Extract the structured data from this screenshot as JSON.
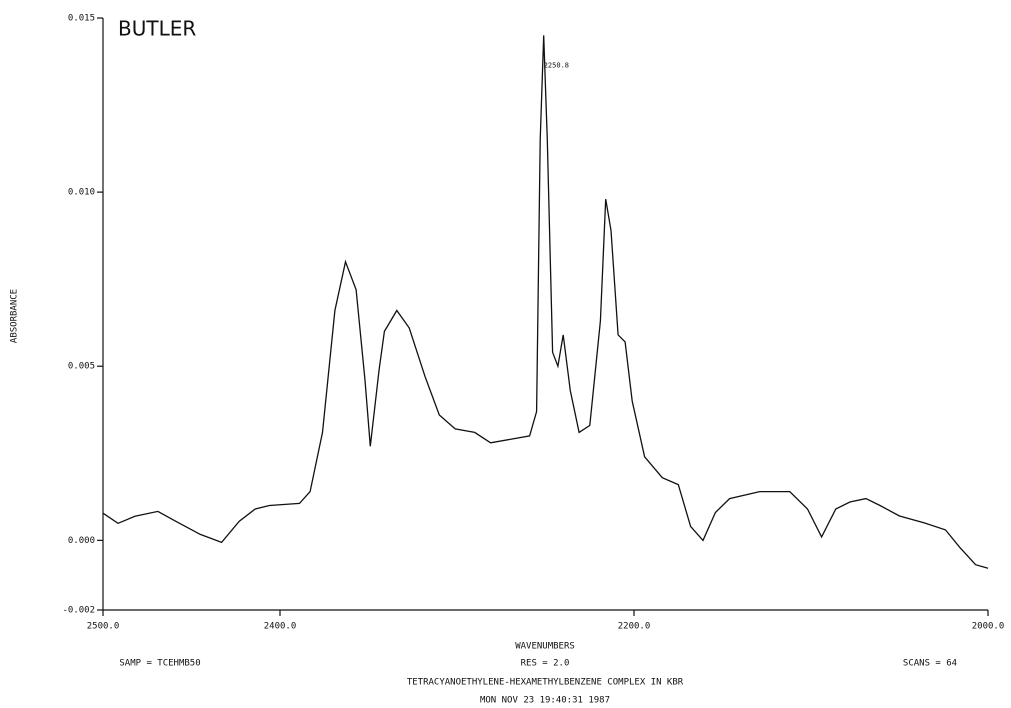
{
  "chart_data": {
    "type": "line",
    "title": "BUTLER",
    "y_label": "ABSORBANCE",
    "x_label": "WAVENUMBERS",
    "footer": {
      "sample": "SAMP = TCEHMB50",
      "resolution": "RES = 2.0",
      "scans": "SCANS = 64",
      "description": "TETRACYANOETHYLENE-HEXAMETHYLBENZENE COMPLEX IN KBR",
      "timestamp": "MON NOV 23 19:40:31 1987"
    },
    "annotation": {
      "label": "2250.8",
      "x": 2251,
      "y": 0.0145
    },
    "xlim": [
      2500,
      2000
    ],
    "xticks": [
      {
        "value": 2500,
        "label": "2500.0"
      },
      {
        "value": 2400,
        "label": "2400.0"
      },
      {
        "value": 2200,
        "label": "2200.0"
      },
      {
        "value": 2000,
        "label": "2000.0"
      }
    ],
    "ylim": [
      -0.002,
      0.015
    ],
    "yticks": [
      -0.002,
      {
        "value": 0,
        "label": "0.000"
      },
      {
        "value": 0.005,
        "label": "0.005"
      },
      {
        "value": 0.01,
        "label": "0.010"
      },
      0.015
    ],
    "color": "#111111",
    "x": [
      2500,
      2491.5,
      2482,
      2469,
      2459,
      2445,
      2433,
      2423,
      2414,
      2406,
      2389,
      2383,
      2376,
      2369,
      2363,
      2357,
      2352,
      2349,
      2344,
      2341,
      2334,
      2327,
      2318,
      2310,
      2301,
      2290,
      2281,
      2270,
      2259,
      2255,
      2253,
      2251,
      2249,
      2246,
      2243,
      2240,
      2236,
      2231,
      2225,
      2219,
      2216,
      2213,
      2209,
      2205,
      2201,
      2194,
      2184,
      2175,
      2168,
      2161,
      2154,
      2146,
      2129,
      2112,
      2102,
      2094,
      2086,
      2078,
      2069,
      2061,
      2050,
      2036,
      2024,
      2016,
      2007,
      2000
    ],
    "values": [
      0.00078,
      0.00049,
      0.00069,
      0.00083,
      0.00055,
      0.00017,
      -6e-05,
      0.00055,
      0.0009,
      0.001,
      0.00106,
      0.0014,
      0.0031,
      0.0066,
      0.008,
      0.0072,
      0.0046,
      0.0027,
      0.0049,
      0.006,
      0.0066,
      0.0061,
      0.0047,
      0.0036,
      0.0032,
      0.0031,
      0.0028,
      0.0029,
      0.003,
      0.0037,
      0.0115,
      0.0145,
      0.0115,
      0.0054,
      0.005,
      0.0059,
      0.0043,
      0.0031,
      0.0033,
      0.0063,
      0.0098,
      0.0089,
      0.0059,
      0.0057,
      0.004,
      0.0024,
      0.0018,
      0.0016,
      0.0004,
      0.0,
      0.0008,
      0.0012,
      0.0014,
      0.0014,
      0.0009,
      0.0001,
      0.0009,
      0.0011,
      0.0012,
      0.001,
      0.0007,
      0.0005,
      0.0003,
      -0.0002,
      -0.0007,
      -0.0008
    ]
  }
}
